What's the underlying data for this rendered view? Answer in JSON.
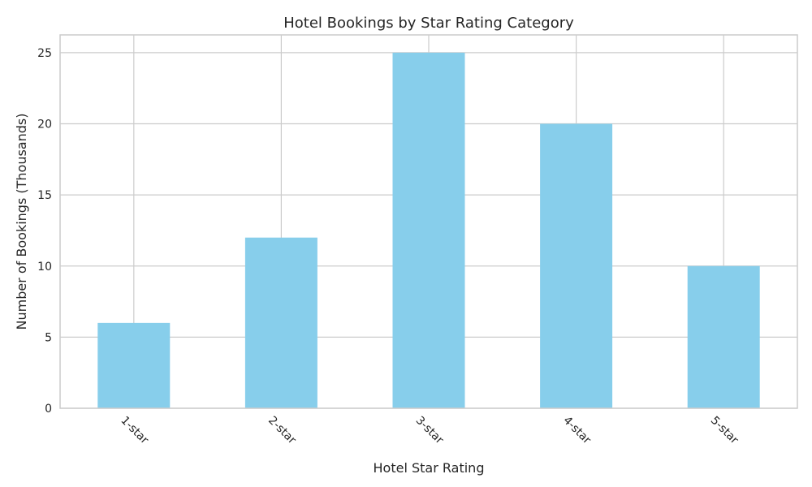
{
  "chart_data": {
    "type": "bar",
    "title": "Hotel Bookings by Star Rating Category",
    "xlabel": "Hotel Star Rating",
    "ylabel": "Number of Bookings (Thousands)",
    "categories": [
      "1-star",
      "2-star",
      "3-star",
      "4-star",
      "5-star"
    ],
    "values": [
      6,
      12,
      25,
      20,
      10
    ],
    "ylim": [
      0,
      26.25
    ],
    "yticks": [
      0,
      5,
      10,
      15,
      20,
      25
    ],
    "bar_color": "#87ceeb",
    "grid": true,
    "legend": "none"
  }
}
